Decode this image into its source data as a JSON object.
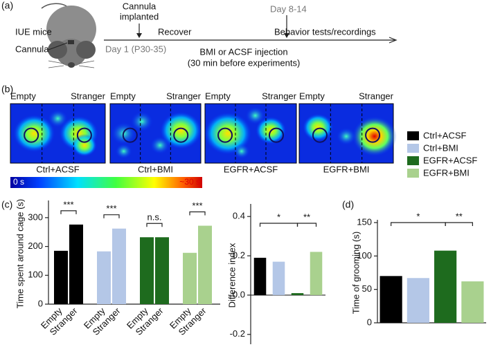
{
  "panel_labels": [
    "(a)",
    "(b)",
    "(c)",
    "(d)"
  ],
  "timeline": {
    "mouse": "IUE mice",
    "cannula": "Cannula",
    "event1": [
      "Cannula",
      "implanted"
    ],
    "recover": "Recover",
    "day1": "Day 1 (P30-35)",
    "day2": "Day 8-14",
    "tests": "Behavior tests/recordings",
    "injection": [
      "BMI or ACSF injection",
      "(30 min before experiments)"
    ]
  },
  "heatmaps": {
    "left": "Empty",
    "right": "Stranger",
    "conditions": [
      "Ctrl+ACSF",
      "Ctrl+BMI",
      "EGFR+ACSF",
      "EGFR+BMI"
    ],
    "colorbar": {
      "min": "0 s",
      "max": "~30 s"
    }
  },
  "chart_data": [
    {
      "type": "bar",
      "y_label": "Time spent around cage (s)",
      "categories": [
        "Empty",
        "Stranger"
      ],
      "series": [
        {
          "name": "Ctrl+ACSF",
          "color": "#000000",
          "values": [
            185,
            276
          ],
          "significance": "***"
        },
        {
          "name": "Ctrl+BMI",
          "color": "#b4c7e7",
          "values": [
            183,
            262
          ],
          "significance": "***"
        },
        {
          "name": "EGFR+ACSF",
          "color": "#1e6b1e",
          "values": [
            232,
            232
          ],
          "significance": "n.s."
        },
        {
          "name": "EGFR+BMI",
          "color": "#a9d18e",
          "values": [
            178,
            272
          ],
          "significance": "***"
        }
      ],
      "ylim": [
        0,
        350
      ],
      "yticks": [
        0,
        100,
        200,
        300
      ]
    },
    {
      "type": "bar",
      "y_label": "Difference index",
      "values": [
        0.19,
        0.17,
        0.01,
        0.22
      ],
      "colors": [
        "#000000",
        "#b4c7e7",
        "#1e6b1e",
        "#a9d18e"
      ],
      "annotations": [
        "*",
        "**"
      ],
      "ylim": [
        -0.25,
        0.45
      ],
      "yticks": [
        {
          "value": -0.2,
          "label": "-0.2"
        },
        {
          "value": 0,
          "label": "0.0"
        },
        {
          "value": 0.2,
          "label": "0.2"
        },
        {
          "value": 0.4,
          "label": "0.4"
        }
      ]
    },
    {
      "type": "bar",
      "y_label": "Time of grooming (s)",
      "values": [
        70,
        67,
        108,
        62
      ],
      "colors": [
        "#000000",
        "#b4c7e7",
        "#1e6b1e",
        "#a9d18e"
      ],
      "annotations": [
        "*",
        "**"
      ],
      "ylim": [
        0,
        150
      ],
      "yticks": [
        0,
        50,
        100,
        150
      ]
    }
  ]
}
